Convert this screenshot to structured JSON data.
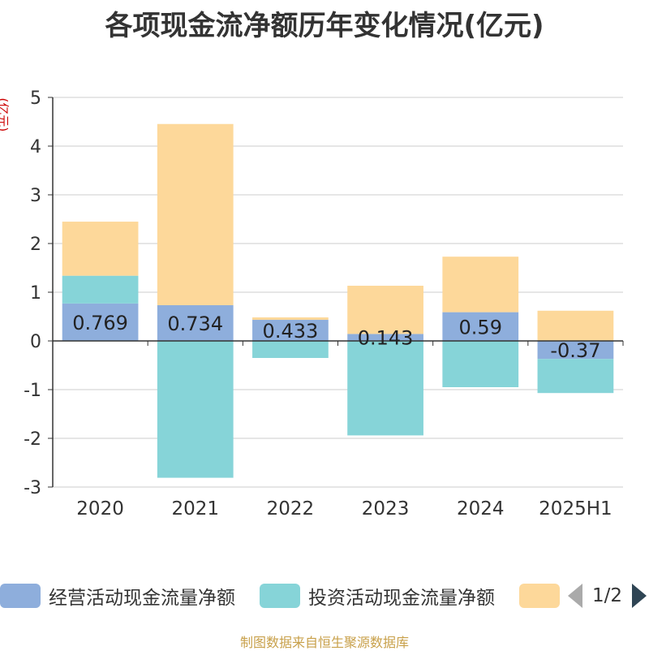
{
  "title": "各项现金流净额历年变化情况(亿元)",
  "y_unit": "(亿元)",
  "source": "制图数据来自恒生聚源数据库",
  "pager": {
    "text": "1/2"
  },
  "legend": [
    {
      "label": "经营活动现金流量净额",
      "color": "#8eaedc"
    },
    {
      "label": "投资活动现金流量净额",
      "color": "#86d4d8"
    },
    {
      "label": "",
      "color": "#fdd89a"
    }
  ],
  "chart_data": {
    "type": "bar",
    "stacked": true,
    "categories": [
      "2020",
      "2021",
      "2022",
      "2023",
      "2024",
      "2025H1"
    ],
    "ylim": [
      -3,
      5
    ],
    "yticks": [
      -3,
      -2,
      -1,
      0,
      1,
      2,
      3,
      4,
      5
    ],
    "grid": true,
    "legend_position": "bottom",
    "series": [
      {
        "name": "经营活动现金流量净额",
        "color": "#8eaedc",
        "values": [
          0.769,
          0.734,
          0.433,
          0.143,
          0.59,
          -0.37
        ],
        "labels": [
          "0.769",
          "0.734",
          "0.433",
          "0.143",
          "0.59",
          "-0.37"
        ]
      },
      {
        "name": "投资活动现金流量净额",
        "color": "#86d4d8",
        "values": [
          0.57,
          -2.81,
          -0.35,
          -1.94,
          -0.95,
          -0.7
        ]
      },
      {
        "color": "#fdd89a",
        "values": [
          1.11,
          3.72,
          0.05,
          0.99,
          1.14,
          0.62
        ]
      }
    ]
  }
}
